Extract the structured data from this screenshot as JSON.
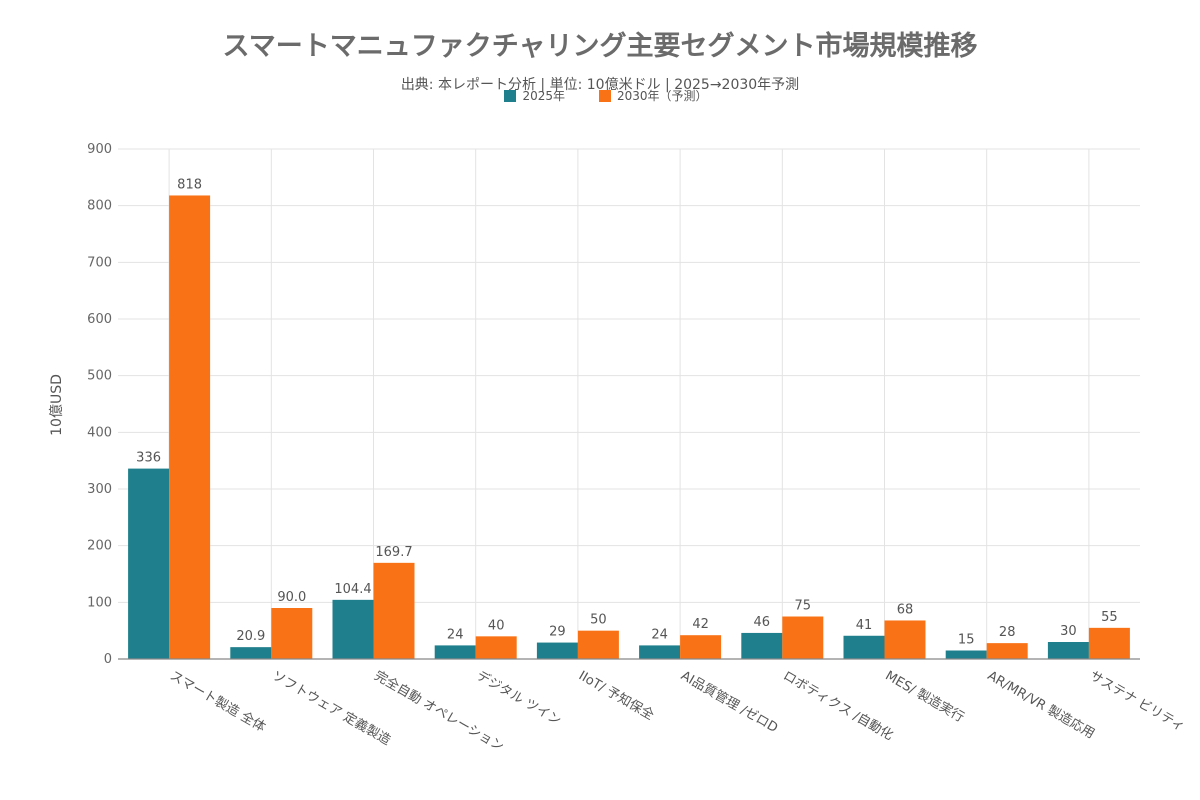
{
  "chart_data": {
    "type": "bar",
    "title": "スマートマニュファクチャリング主要セグメント市場規模推移",
    "subtitle": "出典: 本レポート分析 | 単位: 10億米ドル | 2025→2030年予測",
    "ylabel": "10億USD",
    "xlabel": "",
    "ylim": [
      0,
      900
    ],
    "yticks": [
      0,
      100,
      200,
      300,
      400,
      500,
      600,
      700,
      800,
      900
    ],
    "grid": true,
    "legend_position": "top-center",
    "categories": [
      "スマート製造 全体",
      "ソフトウェア 定義製造",
      "完全自動 オペレーション",
      "デジタル ツイン",
      "IIoT/ 予知保全",
      "AI品質管理 /ゼロD",
      "ロボティクス /自動化",
      "MES/ 製造実行",
      "AR/MR/VR 製造応用",
      "サステナ ビリティ"
    ],
    "series": [
      {
        "name": "2025年",
        "color": "#1f7f8c",
        "values": [
          336,
          20.9,
          104.4,
          24,
          29,
          24,
          46,
          41,
          15,
          30
        ],
        "labels": [
          "336",
          "20.9",
          "104.4",
          "24",
          "29",
          "24",
          "46",
          "41",
          "15",
          "30"
        ]
      },
      {
        "name": "2030年（予測）",
        "color": "#f97316",
        "values": [
          818,
          90.0,
          169.7,
          40,
          50,
          42,
          75,
          68,
          28,
          55
        ],
        "labels": [
          "818",
          "90.0",
          "169.7",
          "40",
          "50",
          "42",
          "75",
          "68",
          "28",
          "55"
        ]
      }
    ]
  }
}
